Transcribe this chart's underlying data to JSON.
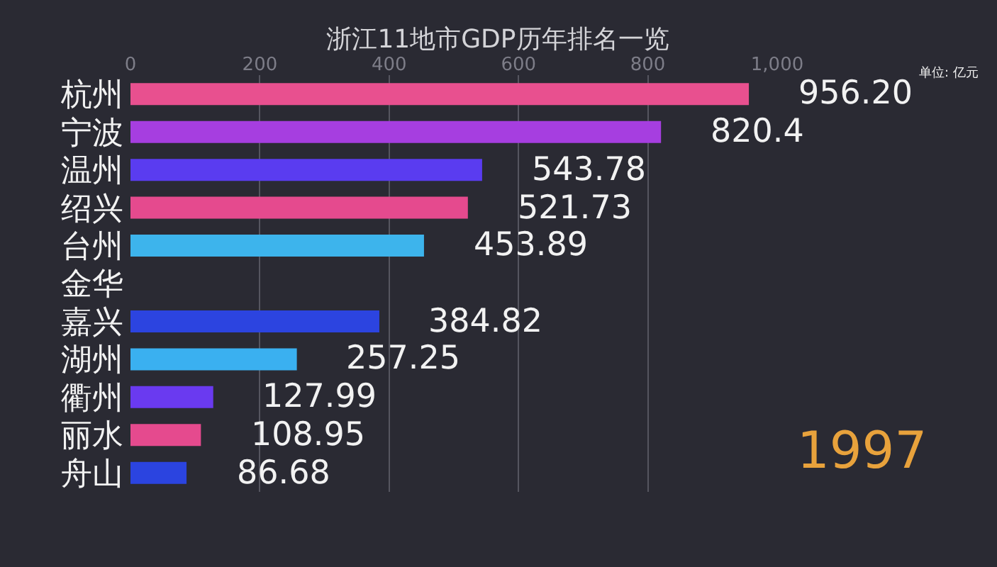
{
  "chart_data": {
    "type": "bar",
    "orientation": "horizontal",
    "title": "浙江11地市GDP历年排名一览",
    "categories": [
      "杭州",
      "宁波",
      "温州",
      "绍兴",
      "台州",
      "金华",
      "嘉兴",
      "湖州",
      "衢州",
      "丽水",
      "舟山"
    ],
    "values": [
      956.2,
      820.4,
      543.78,
      521.73,
      453.89,
      null,
      384.82,
      257.25,
      127.99,
      108.95,
      86.68
    ],
    "value_labels": [
      "956.20",
      "820.4",
      "543.78",
      "521.73",
      "453.89",
      null,
      "384.82",
      "257.25",
      "127.99",
      "108.95",
      "86.68"
    ],
    "colors": [
      "#e8508f",
      "#a63ee0",
      "#5a3cf0",
      "#e54a8e",
      "#3db4ec",
      "#e0904f",
      "#2c44e0",
      "#3ab0f0",
      "#6a3af0",
      "#e54a8e",
      "#2b44e0"
    ],
    "xlim": [
      0,
      1000
    ],
    "xticks": [
      0,
      200,
      400,
      600,
      800,
      {
        "value": 1000,
        "label": "1,000"
      }
    ],
    "grid": "x",
    "annotations": [
      "单位: 亿元",
      "1997"
    ]
  }
}
